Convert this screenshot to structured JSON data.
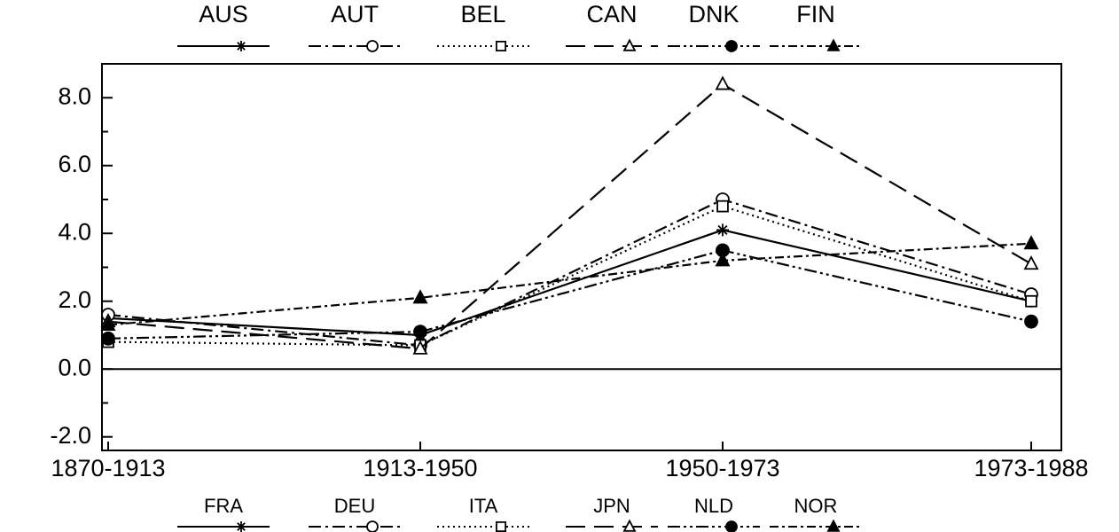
{
  "chart_data": {
    "type": "line",
    "categories": [
      "1870-1913",
      "1913-1950",
      "1950-1973",
      "1973-1988"
    ],
    "series": [
      {
        "name": "AUS",
        "color": "#000000",
        "dash": "none",
        "marker": "asterisk",
        "values": [
          1.5,
          1.0,
          4.1,
          2.0
        ]
      },
      {
        "name": "AUT",
        "color": "#000000",
        "dash": "14 5 3 5",
        "marker": "circle",
        "values": [
          1.6,
          0.7,
          5.0,
          2.2
        ]
      },
      {
        "name": "BEL",
        "color": "#000000",
        "dash": "2 4",
        "marker": "square",
        "values": [
          0.8,
          0.7,
          4.8,
          2.0
        ]
      },
      {
        "name": "CAN",
        "color": "#000000",
        "dash": "22 10",
        "marker": "triangle",
        "values": [
          1.4,
          0.6,
          8.4,
          3.1
        ]
      },
      {
        "name": "DNK",
        "color": "#000000",
        "dash": "14 4 3 4 3 4",
        "marker": "filled-circle",
        "values": [
          0.9,
          1.1,
          3.5,
          1.4
        ]
      },
      {
        "name": "FIN",
        "color": "#000000",
        "dash": "10 4 3 4",
        "marker": "filled-triangle",
        "values": [
          1.3,
          2.1,
          3.2,
          3.7
        ]
      }
    ],
    "legend2": [
      "FRA",
      "DEU",
      "ITA",
      "JPN",
      "NLD",
      "NOR"
    ],
    "ylim": [
      -2.4,
      9.0
    ],
    "yticks": [
      {
        "value": -2,
        "label": "-2.0"
      },
      {
        "value": 0,
        "label": "0.0"
      },
      {
        "value": 2,
        "label": "2.0"
      },
      {
        "value": 4,
        "label": "4.0"
      },
      {
        "value": 6,
        "label": "6.0"
      },
      {
        "value": 8,
        "label": "8.0"
      }
    ],
    "zero_line": true
  }
}
